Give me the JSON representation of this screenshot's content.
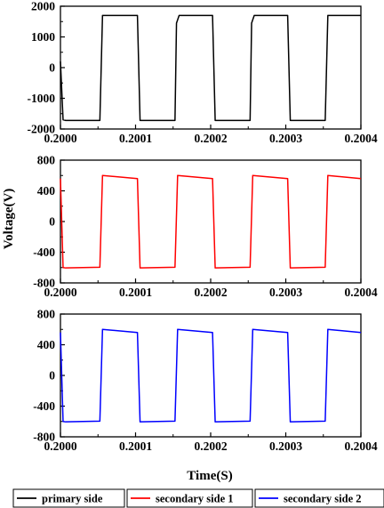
{
  "ylabel": "Voltage(V)",
  "xlabel": "Time(S)",
  "legend_placement": "bottom",
  "legend": [
    {
      "name": "primary side",
      "color": "#000000"
    },
    {
      "name": "secondary side 1",
      "color": "#ff0000"
    },
    {
      "name": "secondary side 2",
      "color": "#0000ff"
    }
  ],
  "chart_data": [
    {
      "type": "line",
      "series_name": "primary side",
      "color": "#000000",
      "xlim": [
        0.2,
        0.2004
      ],
      "ylim": [
        -2000,
        2000
      ],
      "x_ticks": [
        "0.2000",
        "0.2001",
        "0.2002",
        "0.2003",
        "0.2004"
      ],
      "y_ticks": [
        "-2000",
        "-1000",
        "0",
        "1000",
        "2000"
      ],
      "x": [
        0.2,
        0.2000035,
        0.200007,
        0.2000525,
        0.200056,
        0.2001025,
        0.200106,
        0.2001525,
        0.2001545,
        0.200158,
        0.2002025,
        0.200206,
        0.2002525,
        0.2002545,
        0.200258,
        0.2003025,
        0.200306,
        0.2003525,
        0.200356,
        0.2004
      ],
      "y": [
        200,
        -1700,
        -1720,
        -1720,
        1700,
        1700,
        -1720,
        -1720,
        1450,
        1700,
        1700,
        -1720,
        -1720,
        1450,
        1700,
        1700,
        -1720,
        -1720,
        1700,
        1700
      ]
    },
    {
      "type": "line",
      "series_name": "secondary side 1",
      "color": "#ff0000",
      "xlim": [
        0.2,
        0.2004
      ],
      "ylim": [
        -800,
        800
      ],
      "x_ticks": [
        "0.2000",
        "0.2001",
        "0.2002",
        "0.2003",
        "0.2004"
      ],
      "y_ticks": [
        "-800",
        "-400",
        "0",
        "400",
        "800"
      ],
      "x": [
        0.2,
        0.2000035,
        0.200007,
        0.2000525,
        0.200056,
        0.2001025,
        0.200106,
        0.2001525,
        0.200156,
        0.2002025,
        0.200206,
        0.2002525,
        0.200256,
        0.2003025,
        0.200306,
        0.2003525,
        0.200356,
        0.2004
      ],
      "y": [
        560,
        -600,
        -605,
        -595,
        600,
        560,
        -605,
        -595,
        600,
        560,
        -605,
        -595,
        600,
        560,
        -605,
        -595,
        600,
        560
      ]
    },
    {
      "type": "line",
      "series_name": "secondary side 2",
      "color": "#0000ff",
      "xlim": [
        0.2,
        0.2004
      ],
      "ylim": [
        -800,
        800
      ],
      "x_ticks": [
        "0.2000",
        "0.2001",
        "0.2002",
        "0.2003",
        "0.2004"
      ],
      "y_ticks": [
        "-800",
        "-400",
        "0",
        "400",
        "800"
      ],
      "x": [
        0.2,
        0.2000035,
        0.200007,
        0.2000525,
        0.200056,
        0.2001025,
        0.200106,
        0.2001525,
        0.200156,
        0.2002025,
        0.200206,
        0.2002525,
        0.200256,
        0.2003025,
        0.200306,
        0.2003525,
        0.200356,
        0.2004
      ],
      "y": [
        560,
        -600,
        -605,
        -595,
        600,
        560,
        -605,
        -595,
        600,
        560,
        -605,
        -595,
        600,
        560,
        -605,
        -595,
        600,
        560
      ]
    }
  ]
}
